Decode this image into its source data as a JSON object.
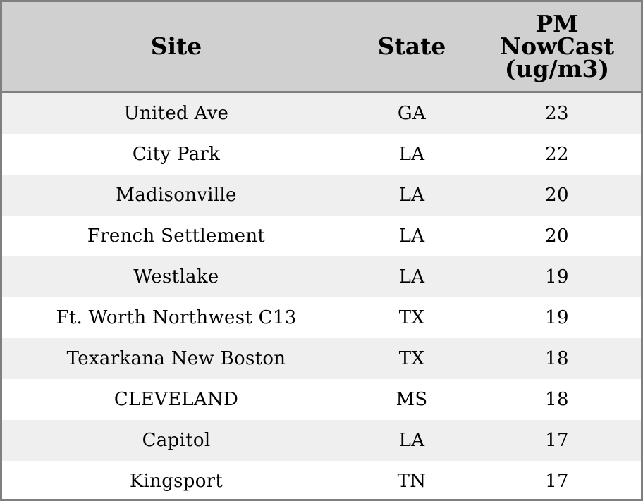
{
  "chart_data": {
    "type": "table",
    "columns": [
      "Site",
      "State",
      "PM NowCast (ug/m3)"
    ],
    "rows": [
      {
        "site": "United Ave",
        "state": "GA",
        "pm": 23
      },
      {
        "site": "City Park",
        "state": "LA",
        "pm": 22
      },
      {
        "site": "Madisonville",
        "state": "LA",
        "pm": 20
      },
      {
        "site": "French Settlement",
        "state": "LA",
        "pm": 20
      },
      {
        "site": "Westlake",
        "state": "LA",
        "pm": 19
      },
      {
        "site": "Ft. Worth Northwest C13",
        "state": "TX",
        "pm": 19
      },
      {
        "site": "Texarkana New Boston",
        "state": "TX",
        "pm": 18
      },
      {
        "site": "CLEVELAND",
        "state": "MS",
        "pm": 18
      },
      {
        "site": "Capitol",
        "state": "LA",
        "pm": 17
      },
      {
        "site": "Kingsport",
        "state": "TN",
        "pm": 17
      }
    ]
  },
  "colors": {
    "header_bg": "#d0d0d0",
    "stripe_bg": "#efefef",
    "border": "#7f7f7f"
  }
}
